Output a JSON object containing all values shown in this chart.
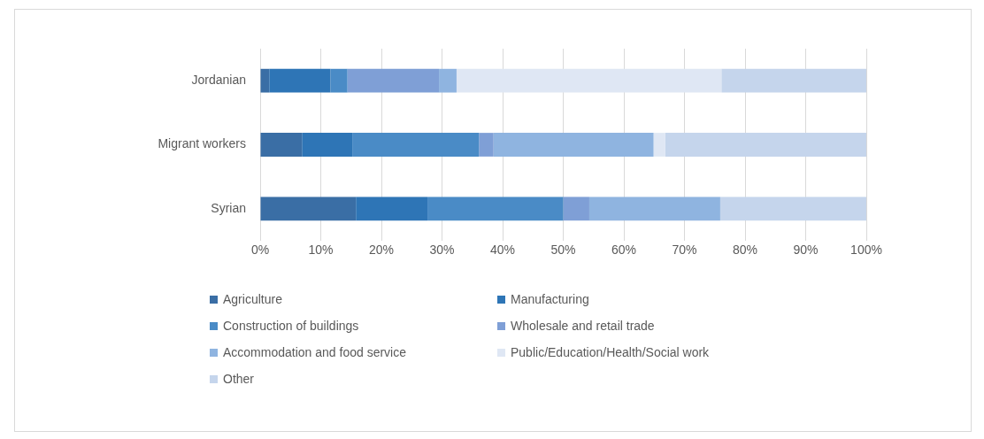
{
  "chart_data": {
    "type": "bar",
    "orientation": "horizontal",
    "stacked": true,
    "categories": [
      "Jordanian",
      "Migrant workers",
      "Syrian"
    ],
    "series": [
      {
        "name": "Agriculture",
        "color": "#3a6ea5",
        "values": [
          1.5,
          6.9,
          15.8
        ]
      },
      {
        "name": "Manufacturing",
        "color": "#2e75b6",
        "values": [
          10.1,
          8.3,
          11.8
        ]
      },
      {
        "name": "Construction of buildings",
        "color": "#4a8bc6",
        "values": [
          2.8,
          20.9,
          22.4
        ]
      },
      {
        "name": "Wholesale and retail trade",
        "color": "#7f9fd6",
        "values": [
          15.1,
          2.4,
          4.3
        ]
      },
      {
        "name": "Accommodation and food service",
        "color": "#8fb4e0",
        "values": [
          2.9,
          26.4,
          21.6
        ]
      },
      {
        "name": "Public/Education/Health/Social work",
        "color": "#dfe7f4",
        "values": [
          43.7,
          1.9,
          0
        ]
      },
      {
        "name": "Other",
        "color": "#c5d5ec",
        "values": [
          23.9,
          33.2,
          24.1
        ]
      }
    ],
    "xlim": [
      0,
      100
    ],
    "xticks": [
      {
        "value": 0,
        "label": "0%"
      },
      {
        "value": 10,
        "label": "10%"
      },
      {
        "value": 20,
        "label": "20%"
      },
      {
        "value": 30,
        "label": "30%"
      },
      {
        "value": 40,
        "label": "40%"
      },
      {
        "value": 50,
        "label": "50%"
      },
      {
        "value": 60,
        "label": "60%"
      },
      {
        "value": 70,
        "label": "70%"
      },
      {
        "value": 80,
        "label": "80%"
      },
      {
        "value": 90,
        "label": "90%"
      },
      {
        "value": 100,
        "label": "100%"
      }
    ],
    "grid": "x",
    "legend": "bottom"
  }
}
